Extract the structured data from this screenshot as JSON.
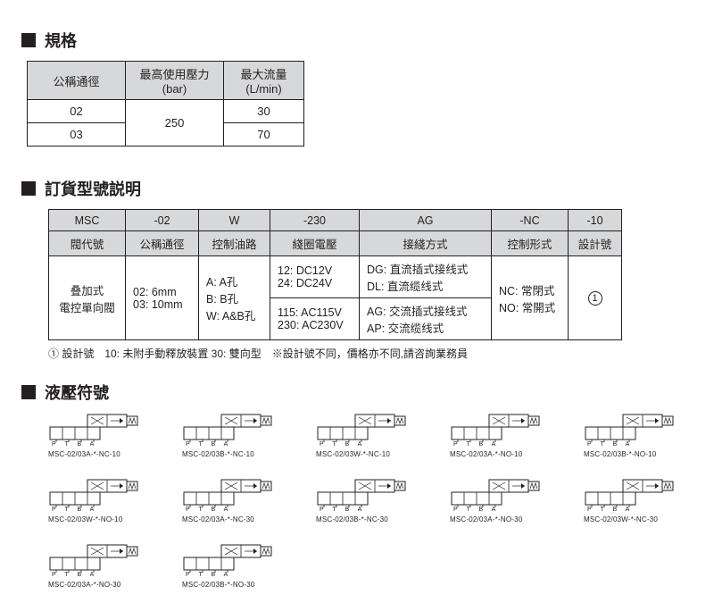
{
  "sections": {
    "spec": "規格",
    "order": "訂貨型號説明",
    "symbols": "液壓符號"
  },
  "spec_table": {
    "headers": [
      "公稱通徑",
      "最高使用壓力\n(bar)",
      "最大流量\n(L/min)"
    ],
    "rows": [
      [
        "02",
        "250",
        "30"
      ],
      [
        "03",
        "",
        "70"
      ]
    ],
    "pressure_rowspan_value": "250"
  },
  "order_table": {
    "top": [
      "MSC",
      "-02",
      "W",
      "-230",
      "AG",
      "-NC",
      "-10"
    ],
    "mid": [
      "閥代號",
      "公稱通徑",
      "控制油路",
      "綫圈電壓",
      "接綫方式",
      "控制形式",
      "設計號"
    ],
    "body": {
      "valve": "叠加式\n電控單向閥",
      "bore": "02: 6mm\n03: 10mm",
      "port": "A: A孔\nB: B孔\nW: A&B孔",
      "coil1": "12: DC12V\n24: DC24V",
      "wire1": "DG: 直流插式接线式\nDL: 直流缆线式",
      "coil2": "115: AC115V\n230: AC230V",
      "wire2": "AG: 交流插式接线式\nAP: 交流缆线式",
      "ctrl": "NC: 常閉式\nNO: 常開式",
      "design": "①"
    }
  },
  "footnote": "① 設計號　10: 未附手動釋放裝置 30: 雙向型　※設計號不同，價格亦不同,請咨詢業務員",
  "symbols": [
    {
      "label": "MSC-02/03A-*-NC-10",
      "variant": "A"
    },
    {
      "label": "MSC-02/03B-*-NC-10",
      "variant": "B"
    },
    {
      "label": "MSC-02/03W-*-NC-10",
      "variant": "W"
    },
    {
      "label": "MSC-02/03A-*-NO-10",
      "variant": "A"
    },
    {
      "label": "MSC-02/03B-*-NO-10",
      "variant": "B"
    },
    {
      "label": "MSC-02/03W-*-NO-10",
      "variant": "W"
    },
    {
      "label": "MSC-02/03A-*-NC-30",
      "variant": "A"
    },
    {
      "label": "MSC-02/03B-*-NC-30",
      "variant": "B"
    },
    {
      "label": "MSC-02/03A-*-NO-30",
      "variant": "A"
    },
    {
      "label": "MSC-02/03W-*-NC-30",
      "variant": "W"
    },
    {
      "label": "MSC-02/03A-*-NO-30",
      "variant": "A"
    },
    {
      "label": "MSC-02/03B-*-NO-30",
      "variant": "B"
    }
  ],
  "port_letters": "P T B   A",
  "colors": {
    "ink": "#231f20",
    "hdr_bg": "#d7d8d9",
    "page_bg": "#ffffff"
  }
}
